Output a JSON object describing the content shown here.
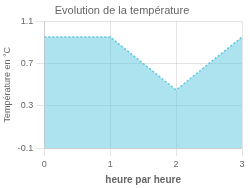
{
  "chart_data": {
    "type": "area",
    "title": "Evolution de la température",
    "xlabel": "heure par heure",
    "ylabel": "Température en °C",
    "x": [
      0,
      1,
      2,
      3
    ],
    "values": [
      0.95,
      0.95,
      0.45,
      0.95
    ],
    "xlim": [
      0,
      3
    ],
    "ylim": [
      -0.1,
      1.1
    ],
    "xticks": [
      0,
      1,
      2,
      3
    ],
    "yticks": [
      -0.1,
      0.3,
      0.7,
      1.1
    ],
    "grid": true,
    "color": "#5bc8e0",
    "line_style": "dotted"
  }
}
